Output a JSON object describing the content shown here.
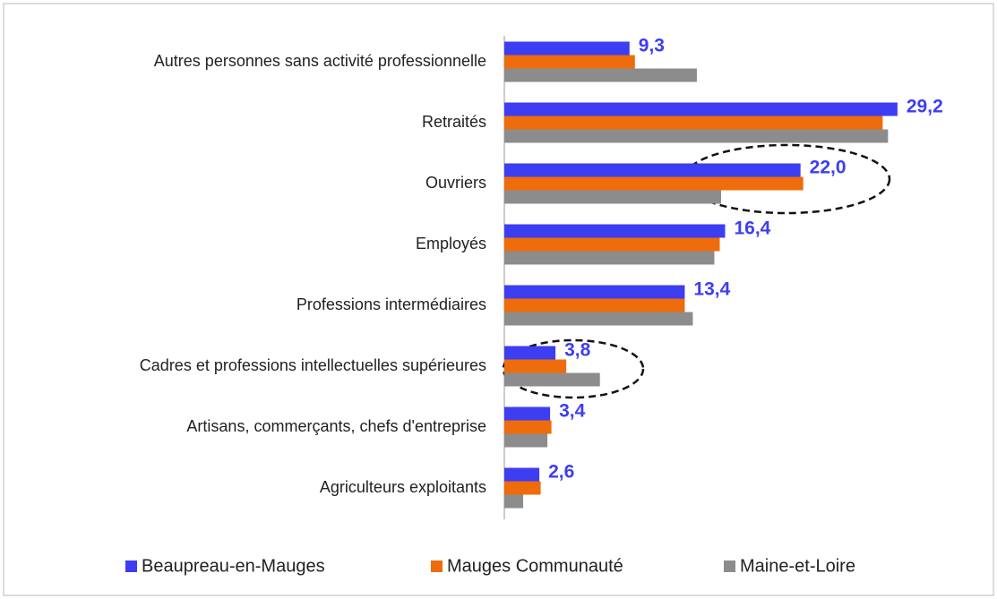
{
  "chart_data": {
    "type": "bar",
    "orientation": "horizontal",
    "categories": [
      "Autres personnes sans activité professionnelle",
      "Retraités",
      "Ouvriers",
      "Employés",
      "Professions intermédiaires",
      "Cadres et professions intellectuelles supérieures",
      "Artisans, commerçants, chefs d'entreprise",
      "Agriculteurs exploitants"
    ],
    "series": [
      {
        "name": "Beaupreau-en-Mauges",
        "color": "#3d3df2",
        "values": [
          9.3,
          29.2,
          22.0,
          16.4,
          13.4,
          3.8,
          3.4,
          2.6
        ],
        "value_labels": [
          "9,3",
          "29,2",
          "22,0",
          "16,4",
          "13,4",
          "3,8",
          "3,4",
          "2,6"
        ]
      },
      {
        "name": "Mauges Communauté",
        "color": "#ee6c0c",
        "values": [
          9.7,
          28.1,
          22.2,
          16.0,
          13.4,
          4.6,
          3.5,
          2.7
        ]
      },
      {
        "name": "Maine-et-Loire",
        "color": "#8c8c8c",
        "values": [
          14.3,
          28.5,
          16.1,
          15.6,
          14.0,
          7.1,
          3.2,
          1.4
        ]
      }
    ],
    "xlim": [
      0,
      32
    ],
    "legend": "bottom"
  }
}
